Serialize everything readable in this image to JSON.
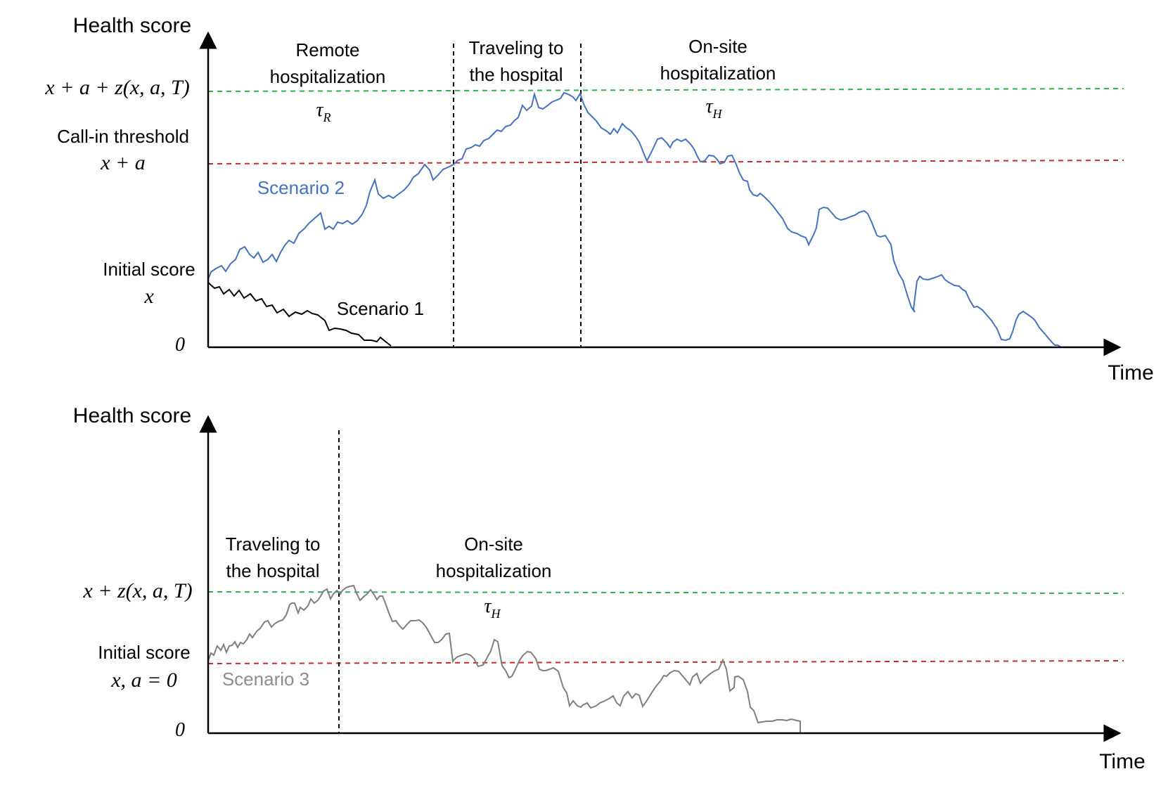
{
  "top_panel": {
    "y_axis_label": "Health score",
    "x_axis_label": "Time",
    "level_upper": "x + a + z(x, a, T)",
    "threshold_label": "Call-in threshold",
    "threshold_expr": "x + a",
    "initial_label": "Initial score",
    "initial_expr": "x",
    "zero_label": "0",
    "phase_remote_line1": "Remote",
    "phase_remote_line2": "hospitalization",
    "tau_r_base": "τ",
    "tau_r_sub": "R",
    "phase_travel_line1": "Traveling to",
    "phase_travel_line2": "the hospital",
    "phase_onsite_line1": "On-site",
    "phase_onsite_line2": "hospitalization",
    "tau_h_base": "τ",
    "tau_h_sub": "H",
    "scenario1": "Scenario 1",
    "scenario2": "Scenario 2"
  },
  "bottom_panel": {
    "y_axis_label": "Health score",
    "x_axis_label": "Time",
    "level_upper": "x + z(x, a, T)",
    "initial_label": "Initial score",
    "initial_expr": "x, a = 0",
    "zero_label": "0",
    "phase_travel_line1": "Traveling to",
    "phase_travel_line2": "the hospital",
    "phase_onsite_line1": "On-site",
    "phase_onsite_line2": "hospitalization",
    "tau_h_base": "τ",
    "tau_h_sub": "H",
    "scenario3": "Scenario 3"
  },
  "colors": {
    "green_dashed": "#2db34a",
    "red_dashed": "#cc2a2a",
    "scenario1": "#000000",
    "scenario2": "#4472c4",
    "scenario3": "#7f7f7f",
    "phase_divider": "#000000"
  }
}
